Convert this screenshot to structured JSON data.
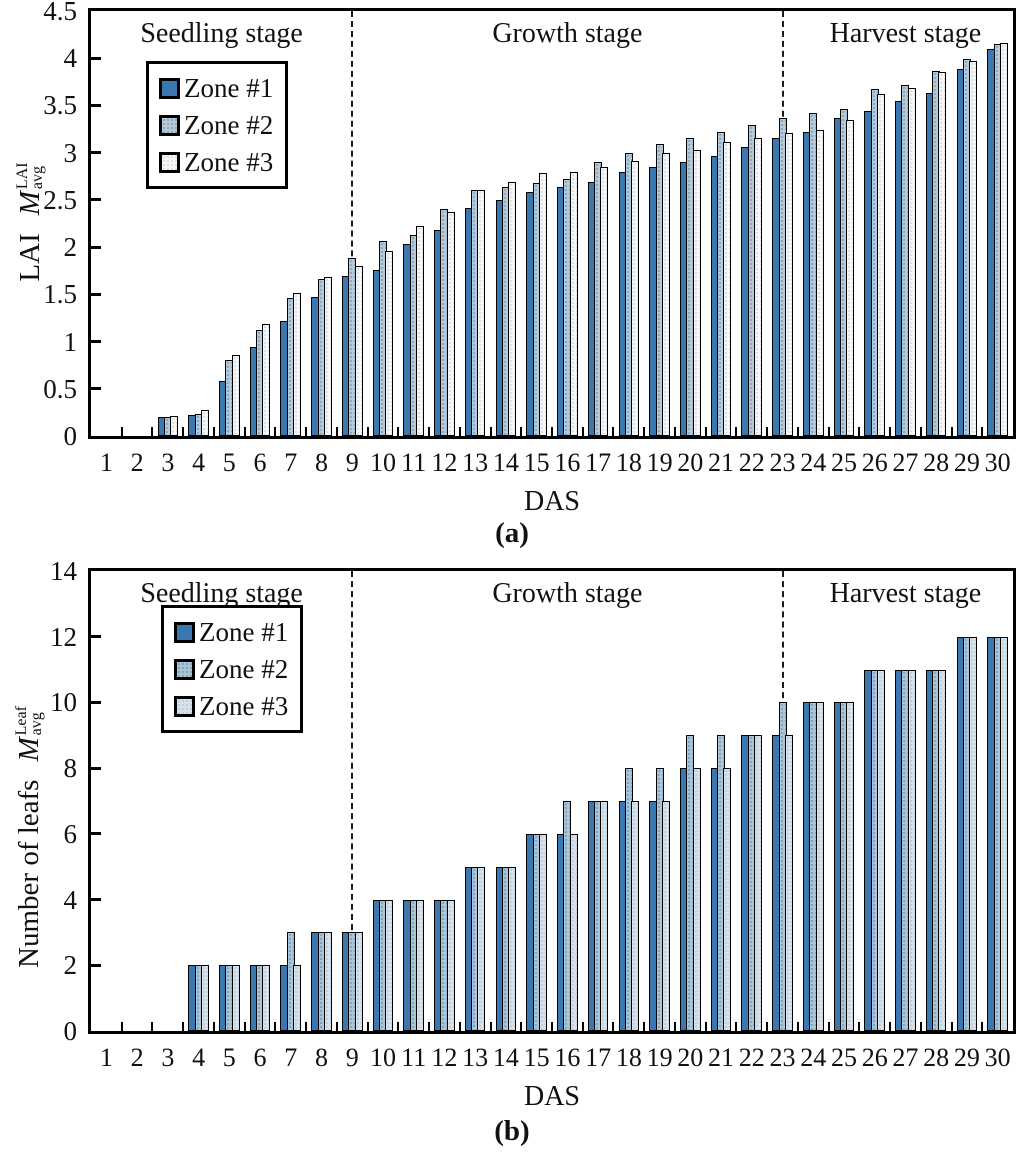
{
  "figure": {
    "background": "#ffffff",
    "text_color": "#111111",
    "axis_color": "#000000"
  },
  "chart_data": [
    {
      "id": "panel_a",
      "type": "bar",
      "panel_label": "(a)",
      "xlabel": "DAS",
      "ylabel_prefix": "LAI",
      "ylabel_symbol": "M",
      "ylabel_sub": "avg",
      "ylabel_sup": "LAI",
      "ylim": [
        0,
        4.5
      ],
      "yticks": [
        "0",
        "0.5",
        "1",
        "1.5",
        "2",
        "2.5",
        "3",
        "3.5",
        "4",
        "4.5"
      ],
      "categories": [
        1,
        2,
        3,
        4,
        5,
        6,
        7,
        8,
        9,
        10,
        11,
        12,
        13,
        14,
        15,
        16,
        17,
        18,
        19,
        20,
        21,
        22,
        23,
        24,
        25,
        26,
        27,
        28,
        29,
        30
      ],
      "stages": [
        {
          "label": "Seedling stage",
          "center_das": 4.75
        },
        {
          "label": "Growth stage",
          "center_das": 16
        },
        {
          "label": "Harvest stage",
          "center_das": 27
        }
      ],
      "dividers_das": [
        9,
        23
      ],
      "series": [
        {
          "name": "Zone #1",
          "color": "#3b78b0",
          "texture": "none",
          "values": [
            0,
            0,
            0.2,
            0.22,
            0.58,
            0.94,
            1.22,
            1.47,
            1.69,
            1.76,
            2.03,
            2.18,
            2.41,
            2.5,
            2.58,
            2.64,
            2.69,
            2.8,
            2.85,
            2.9,
            2.97,
            3.06,
            3.16,
            3.22,
            3.37,
            3.44,
            3.55,
            3.63,
            3.89,
            4.1
          ]
        },
        {
          "name": "Zone #2",
          "color": "#b3cadb",
          "texture": "dots-dark",
          "values": [
            0,
            0,
            0.2,
            0.23,
            0.8,
            1.12,
            1.46,
            1.66,
            1.88,
            2.06,
            2.13,
            2.4,
            2.6,
            2.64,
            2.68,
            2.72,
            2.9,
            3.0,
            3.09,
            3.16,
            3.22,
            3.29,
            3.37,
            3.42,
            3.46,
            3.67,
            3.72,
            3.87,
            3.99,
            4.15
          ]
        },
        {
          "name": "Zone #3",
          "color": "#f4f6f8",
          "texture": "dots-light",
          "values": [
            0,
            0,
            0.21,
            0.28,
            0.86,
            1.19,
            1.51,
            1.68,
            1.8,
            1.96,
            2.22,
            2.37,
            2.6,
            2.69,
            2.78,
            2.8,
            2.85,
            2.91,
            3.0,
            3.03,
            3.11,
            3.16,
            3.21,
            3.24,
            3.35,
            3.62,
            3.69,
            3.85,
            3.97,
            4.16
          ]
        }
      ],
      "legend": [
        {
          "label": "Zone #1",
          "color": "#3b78b0",
          "texture": "none"
        },
        {
          "label": "Zone #2",
          "color": "#b3cadb",
          "texture": "dots-dark"
        },
        {
          "label": "Zone #3",
          "color": "#f4f6f8",
          "texture": "dots-light"
        }
      ]
    },
    {
      "id": "panel_b",
      "type": "bar",
      "panel_label": "(b)",
      "xlabel": "DAS",
      "ylabel_prefix": "Number of leafs",
      "ylabel_symbol": "M",
      "ylabel_sub": "avg",
      "ylabel_sup": "Leaf",
      "ylim": [
        0,
        14
      ],
      "yticks": [
        "0",
        "2",
        "4",
        "6",
        "8",
        "10",
        "12",
        "14"
      ],
      "categories": [
        1,
        2,
        3,
        4,
        5,
        6,
        7,
        8,
        9,
        10,
        11,
        12,
        13,
        14,
        15,
        16,
        17,
        18,
        19,
        20,
        21,
        22,
        23,
        24,
        25,
        26,
        27,
        28,
        29,
        30
      ],
      "stages": [
        {
          "label": "Seedling stage",
          "center_das": 4.75
        },
        {
          "label": "Growth stage",
          "center_das": 16
        },
        {
          "label": "Harvest stage",
          "center_das": 27
        }
      ],
      "dividers_das": [
        9,
        23
      ],
      "series": [
        {
          "name": "Zone #1",
          "color": "#3b78b0",
          "texture": "none",
          "values": [
            0,
            0,
            0,
            2,
            2,
            2,
            2,
            3,
            3,
            4,
            4,
            4,
            5,
            5,
            6,
            6,
            7,
            7,
            7,
            8,
            8,
            9,
            9,
            10,
            10,
            11,
            11,
            11,
            12,
            12
          ]
        },
        {
          "name": "Zone #2",
          "color": "#a8c5d9",
          "texture": "dots-dark",
          "values": [
            0,
            0,
            0,
            2,
            2,
            2,
            3,
            3,
            3,
            4,
            4,
            4,
            5,
            5,
            6,
            7,
            7,
            8,
            8,
            9,
            9,
            9,
            10,
            10,
            10,
            11,
            11,
            11,
            12,
            12
          ]
        },
        {
          "name": "Zone #3",
          "color": "#d6e2eb",
          "texture": "dots-light",
          "values": [
            0,
            0,
            0,
            2,
            2,
            2,
            2,
            3,
            3,
            4,
            4,
            4,
            5,
            5,
            6,
            6,
            7,
            7,
            7,
            8,
            8,
            9,
            9,
            10,
            10,
            11,
            11,
            11,
            12,
            12
          ]
        }
      ],
      "legend": [
        {
          "label": "Zone #1",
          "color": "#3b78b0",
          "texture": "none"
        },
        {
          "label": "Zone #2",
          "color": "#a8c5d9",
          "texture": "dots-dark"
        },
        {
          "label": "Zone #3",
          "color": "#d6e2eb",
          "texture": "dots-light"
        }
      ]
    }
  ]
}
